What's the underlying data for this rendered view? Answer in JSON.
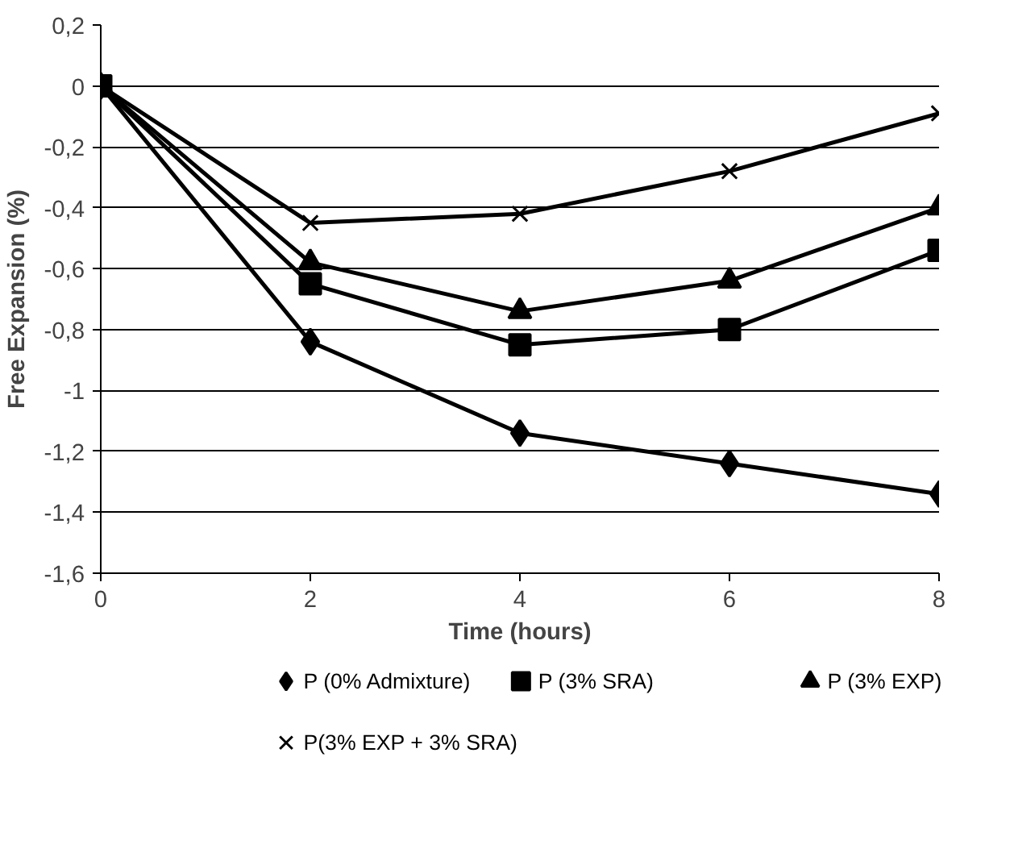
{
  "chart_data": {
    "type": "line",
    "xlabel": "Time (hours)",
    "ylabel": "Free Expansion (%)",
    "x": [
      0,
      2,
      4,
      6,
      8
    ],
    "series": [
      {
        "name": "P (0% Admixture)",
        "color": "#000000",
        "marker": "diamond",
        "values": [
          0,
          -0.84,
          -1.14,
          -1.24,
          -1.34
        ]
      },
      {
        "name": "P (3% SRA)",
        "color": "#000000",
        "marker": "square",
        "values": [
          0,
          -0.65,
          -0.85,
          -0.8,
          -0.54
        ]
      },
      {
        "name": "P (3% EXP)",
        "color": "#000000",
        "marker": "triangle",
        "values": [
          0,
          -0.58,
          -0.74,
          -0.64,
          -0.4
        ]
      },
      {
        "name": "P(3% EXP + 3% SRA)",
        "color": "#000000",
        "marker": "cross",
        "values": [
          0,
          -0.45,
          -0.42,
          -0.28,
          -0.09
        ]
      }
    ],
    "xlim": [
      0,
      8
    ],
    "xticks": [
      0,
      2,
      4,
      6,
      8
    ],
    "ylim": [
      -1.6,
      0.2
    ],
    "yticks": [
      {
        "value": -1.6,
        "label": "-1,6"
      },
      {
        "value": -1.4,
        "label": "-1,4"
      },
      {
        "value": -1.2,
        "label": "-1,2"
      },
      {
        "value": -1,
        "label": "-1"
      },
      {
        "value": -0.8,
        "label": "-0,8"
      },
      {
        "value": -0.6,
        "label": "-0,6"
      },
      {
        "value": -0.4,
        "label": "-0,4"
      },
      {
        "value": -0.2,
        "label": "-0,2"
      },
      {
        "value": 0,
        "label": "0"
      },
      {
        "value": 0.2,
        "label": "0,2"
      }
    ],
    "grid": "y",
    "legend": "bottom",
    "line_style": "solid"
  }
}
